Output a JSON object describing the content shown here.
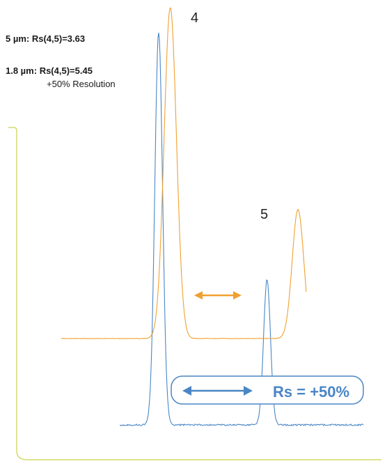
{
  "chart_data": {
    "type": "line",
    "title": "",
    "xlabel": "",
    "ylabel": "",
    "grid": false,
    "legend": "none",
    "series": [
      {
        "color": "#f0a030",
        "baseline": 0,
        "peaks": [
          {
            "label": "4",
            "center": 0.44,
            "height": 1.0,
            "width": 0.016
          },
          {
            "label": "5",
            "center": 0.77,
            "height": 0.39,
            "width": 0.015
          }
        ]
      },
      {
        "color": "#4a86c5",
        "baseline": 0,
        "peaks": [
          {
            "label": "4",
            "center": 0.41,
            "height": 1.0,
            "width": 0.01
          },
          {
            "label": "5",
            "center": 0.69,
            "height": 0.37,
            "width": 0.009
          }
        ]
      }
    ],
    "annotations": {
      "rs_5um": {
        "prefix": "5 µm:",
        "text": "Rs(4,5)=3.63"
      },
      "rs_18um": {
        "prefix": "1.8 µm:",
        "text": "Rs(4,5)=5.45",
        "sub": "+50% Resolution"
      },
      "rs_callout": "Rs = +50%"
    }
  },
  "colors": {
    "orange": "#f0a030",
    "blue": "#4a86c5",
    "frame": "#c8d24a"
  }
}
